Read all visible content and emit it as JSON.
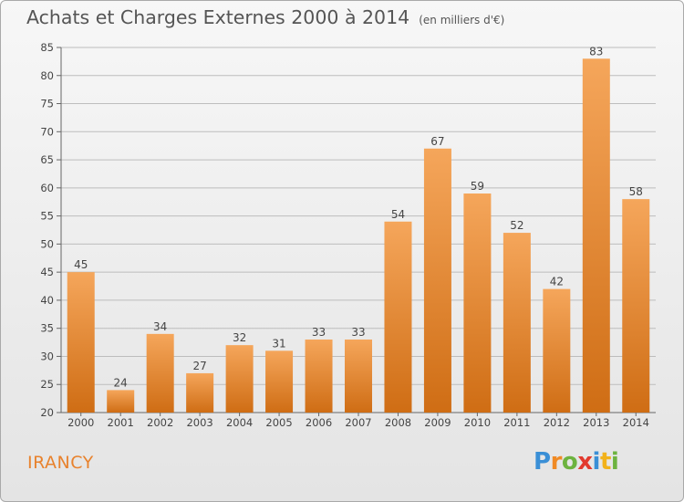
{
  "title": "Achats et Charges Externes 2000 à 2014",
  "subtitle": "(en milliers d'€)",
  "commune": "IRANCY",
  "logo": {
    "letters": [
      "P",
      "r",
      "o",
      "x",
      "i",
      "t",
      "i"
    ],
    "colors": [
      "#3a8fd6",
      "#f08a24",
      "#6db33f",
      "#e23a2e",
      "#3a8fd6",
      "#f2b21b",
      "#6db33f"
    ]
  },
  "colors": {
    "bar_top": "#f5a65b",
    "bar_bottom": "#cf6d14",
    "grid": "#bdbdbd",
    "commune": "#e8822d"
  },
  "chart_data": {
    "type": "bar",
    "title": "Achats et Charges Externes 2000 à 2014",
    "subtitle": "(en milliers d'€)",
    "categories": [
      "2000",
      "2001",
      "2002",
      "2003",
      "2004",
      "2005",
      "2006",
      "2007",
      "2008",
      "2009",
      "2010",
      "2011",
      "2012",
      "2013",
      "2014"
    ],
    "values": [
      45,
      24,
      34,
      27,
      32,
      31,
      33,
      33,
      54,
      67,
      59,
      52,
      42,
      83,
      58
    ],
    "ylim": [
      20,
      85
    ],
    "yticks": [
      20,
      25,
      30,
      35,
      40,
      45,
      50,
      55,
      60,
      65,
      70,
      75,
      80,
      85
    ],
    "grid": true,
    "data_labels": true
  }
}
